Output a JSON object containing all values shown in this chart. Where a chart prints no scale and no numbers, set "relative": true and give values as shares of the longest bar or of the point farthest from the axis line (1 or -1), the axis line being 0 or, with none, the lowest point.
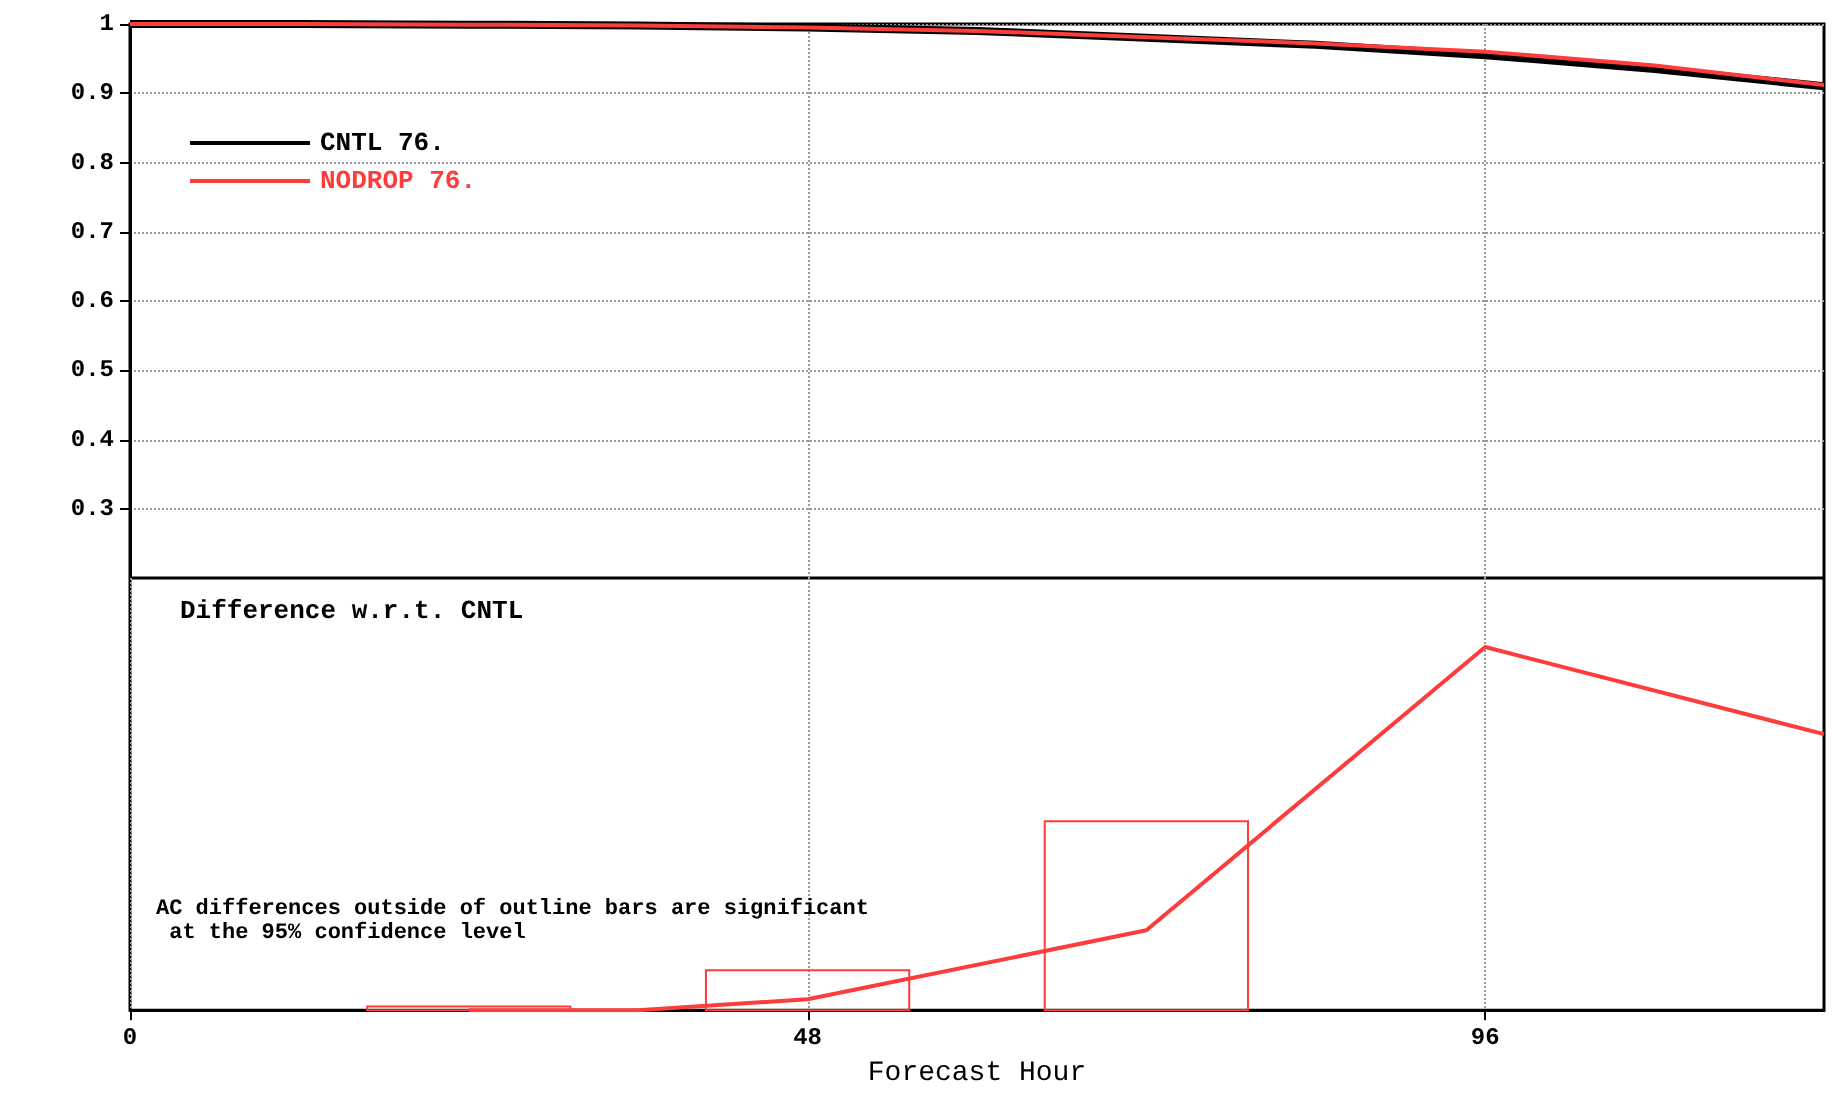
{
  "chart_data": [
    {
      "type": "line",
      "x": [
        0,
        12,
        24,
        36,
        48,
        60,
        72,
        84,
        96,
        108,
        120
      ],
      "xlim": [
        0,
        120
      ],
      "xticks": [
        0,
        48,
        96
      ],
      "ylim": [
        0.2,
        1
      ],
      "yticks": [
        0.3,
        0.4,
        0.5,
        0.6,
        0.7,
        0.8,
        0.9,
        1
      ],
      "tick_labels": "y",
      "grid": true,
      "legend": "top left",
      "series": [
        {
          "name": "CNTL 76.",
          "color": "#000000",
          "values": [
            1,
            1,
            0.999,
            0.998,
            0.995,
            0.99,
            0.98,
            0.97,
            0.955,
            0.935,
            0.91
          ]
        },
        {
          "name": "NODROP 76.",
          "color": "#ff3c3c",
          "values": [
            1,
            1,
            0.999,
            0.998,
            0.995,
            0.99,
            0.981,
            0.972,
            0.96,
            0.94,
            0.912
          ]
        }
      ]
    },
    {
      "type": "line",
      "relative": true,
      "xlim": [
        0,
        120
      ],
      "xticks": [
        0,
        48,
        96
      ],
      "xlabel": "Forecast Hour",
      "tick_labels": "x",
      "grid": "x",
      "annotations": [
        "Difference w.r.t. CNTL",
        "AC differences outside of outline bars are significant at the 95% confidence level"
      ],
      "series": [
        {
          "type": "bar",
          "color": "#ff3c3c",
          "x": [
            24,
            48,
            72
          ],
          "values": [
            0.01,
            0.11,
            0.52
          ]
        },
        {
          "color": "#ff3c3c",
          "x": [
            24,
            36,
            48,
            72,
            96,
            120
          ],
          "values": [
            0,
            0,
            0.03,
            0.22,
            1,
            0.76
          ]
        }
      ]
    }
  ]
}
